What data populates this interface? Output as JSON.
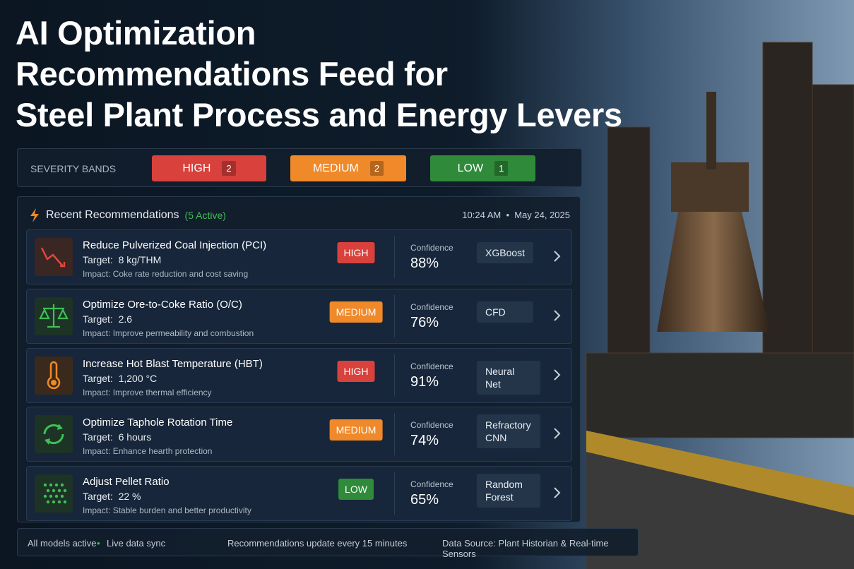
{
  "header": {
    "title_lines": [
      "AI Optimization",
      "Recommendations Feed for",
      "Steel Plant Process and Energy Levers"
    ]
  },
  "severity_bands": {
    "label": "SEVERITY BANDS",
    "bands": [
      {
        "name": "HIGH",
        "count": 2
      },
      {
        "name": "MEDIUM",
        "count": 2
      },
      {
        "name": "LOW",
        "count": 1
      }
    ]
  },
  "feed": {
    "title": "Recent Recommendations",
    "active": "(5 Active)",
    "time": "10:24 AM",
    "date": "May 24, 2025",
    "confidence_label": "Confidence",
    "target_label": "Target:",
    "impact_label": "Impact:",
    "items": [
      {
        "title": "Reduce Pulverized Coal Injection (PCI)",
        "target": "8 kg/THM",
        "impact": "Coke rate reduction and cost saving",
        "severity": "HIGH",
        "confidence": "88%",
        "model": "XGBoost"
      },
      {
        "title": "Optimize Ore-to-Coke Ratio (O/C)",
        "target": "2.6",
        "impact": "Improve permeability and combustion",
        "severity": "MEDIUM",
        "confidence": "76%",
        "model": "CFD"
      },
      {
        "title": "Increase Hot Blast Temperature (HBT)",
        "target": "1,200 °C",
        "impact": "Improve thermal efficiency",
        "severity": "HIGH",
        "confidence": "91%",
        "model": "Neural Net"
      },
      {
        "title": "Optimize Taphole Rotation Time",
        "target": "6 hours",
        "impact": "Enhance hearth protection",
        "severity": "MEDIUM",
        "confidence": "74%",
        "model": "Refractory CNN"
      },
      {
        "title": "Adjust Pellet Ratio",
        "target": "22 %",
        "impact": "Stable burden and better productivity",
        "severity": "LOW",
        "confidence": "65%",
        "model": "Random Forest"
      }
    ]
  },
  "footer": {
    "status": "All models active",
    "sync": "Live data sync",
    "update": "Recommendations update every 15 minutes",
    "source": "Data Source: Plant Historian & Real-time Sensors"
  }
}
